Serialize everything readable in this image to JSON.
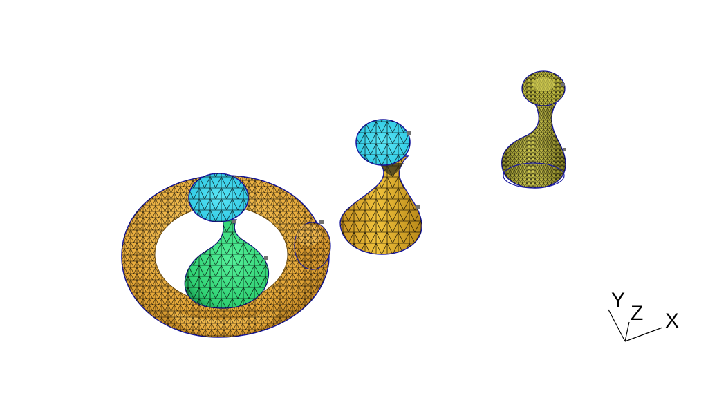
{
  "viewport": {
    "background": "#ffffff"
  },
  "scene": {
    "objects": [
      {
        "name": "torus",
        "shape": "open-torus",
        "fill": "#f2b445",
        "mesh": "#000000",
        "edge": "#1a1aa0"
      },
      {
        "name": "flask-green",
        "shape": "vase",
        "fill": "#3ddf80",
        "cap": "#3fd8ea",
        "mesh": "#000000"
      },
      {
        "name": "hourglass-gold",
        "shape": "hourglass",
        "fill": "#e5b533",
        "cap": "#38d0ea",
        "mesh": "#000000"
      },
      {
        "name": "bottle-olive",
        "shape": "bottle",
        "fill": "#c9c448",
        "mesh": "#000000"
      }
    ]
  },
  "axes": {
    "x_label": "X",
    "y_label": "Y",
    "z_label": "Z",
    "color": "#000000"
  }
}
